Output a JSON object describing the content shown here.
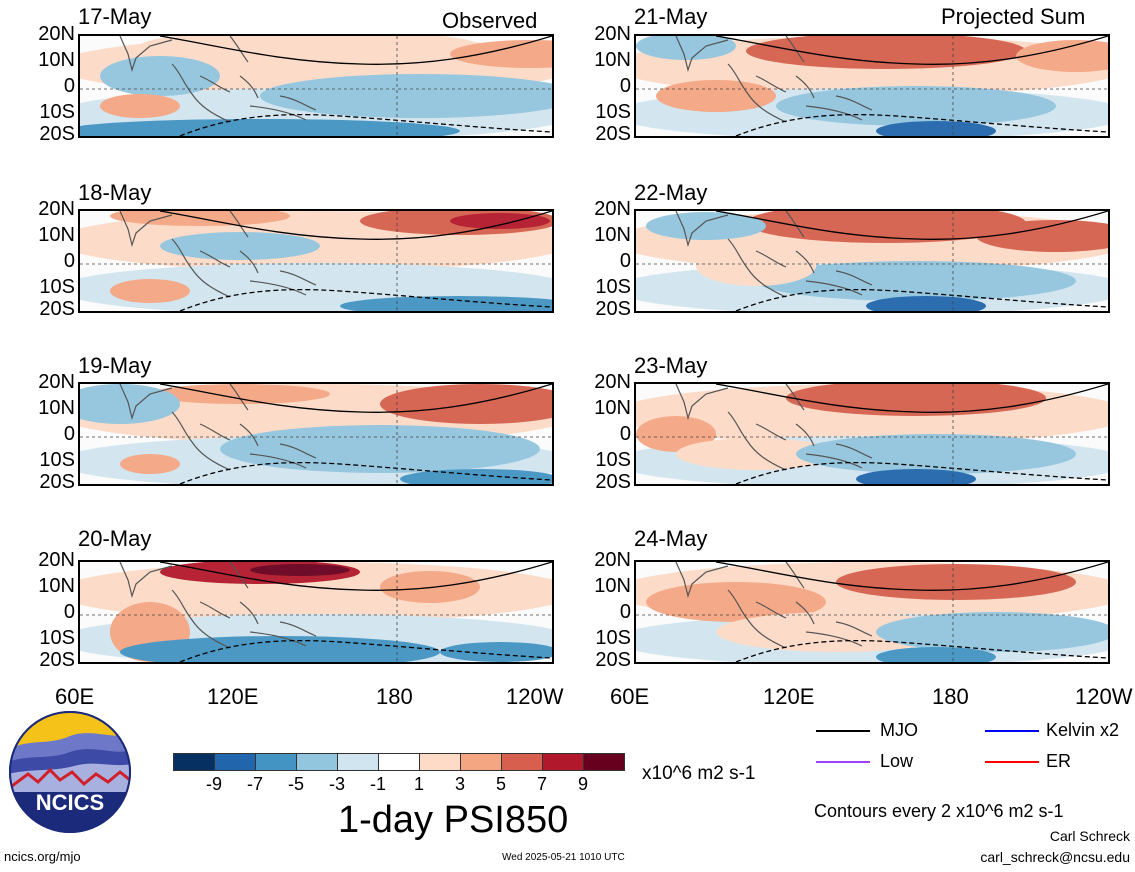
{
  "headers": {
    "left": "Observed",
    "right": "Projected Sum"
  },
  "panels_left": [
    "17-May",
    "18-May",
    "19-May",
    "20-May"
  ],
  "panels_right": [
    "21-May",
    "22-May",
    "23-May",
    "24-May"
  ],
  "lat_labels": [
    "20N",
    "10N",
    "0",
    "10S",
    "20S"
  ],
  "lon_labels": [
    "60E",
    "120E",
    "180",
    "120W"
  ],
  "colorbar": {
    "colors": [
      "#053061",
      "#2166ac",
      "#4393c3",
      "#92c5de",
      "#d1e5f0",
      "#ffffff",
      "#fddbc7",
      "#f4a582",
      "#d6604d",
      "#b2182b",
      "#67001f"
    ],
    "labels": [
      "-9",
      "-7",
      "-5",
      "-3",
      "-1",
      "1",
      "3",
      "5",
      "7",
      "9"
    ],
    "units": "x10^6 m2 s-1"
  },
  "title": "1-day PSI850",
  "legend": [
    {
      "label": "MJO",
      "color": "#000000"
    },
    {
      "label": "Kelvin x2",
      "color": "#0000ff"
    },
    {
      "label": "Low",
      "color": "#a040ff"
    },
    {
      "label": "ER",
      "color": "#ff0000"
    }
  ],
  "contour_note": "Contours every 2 x10^6 m2 s-1",
  "credit_name": "Carl Schreck",
  "credit_email": "carl_schreck@ncsu.edu",
  "logo_text": "NCICS",
  "site": "ncics.org/mjo",
  "timestamp": "Wed 2025-05-21 1010 UTC"
}
